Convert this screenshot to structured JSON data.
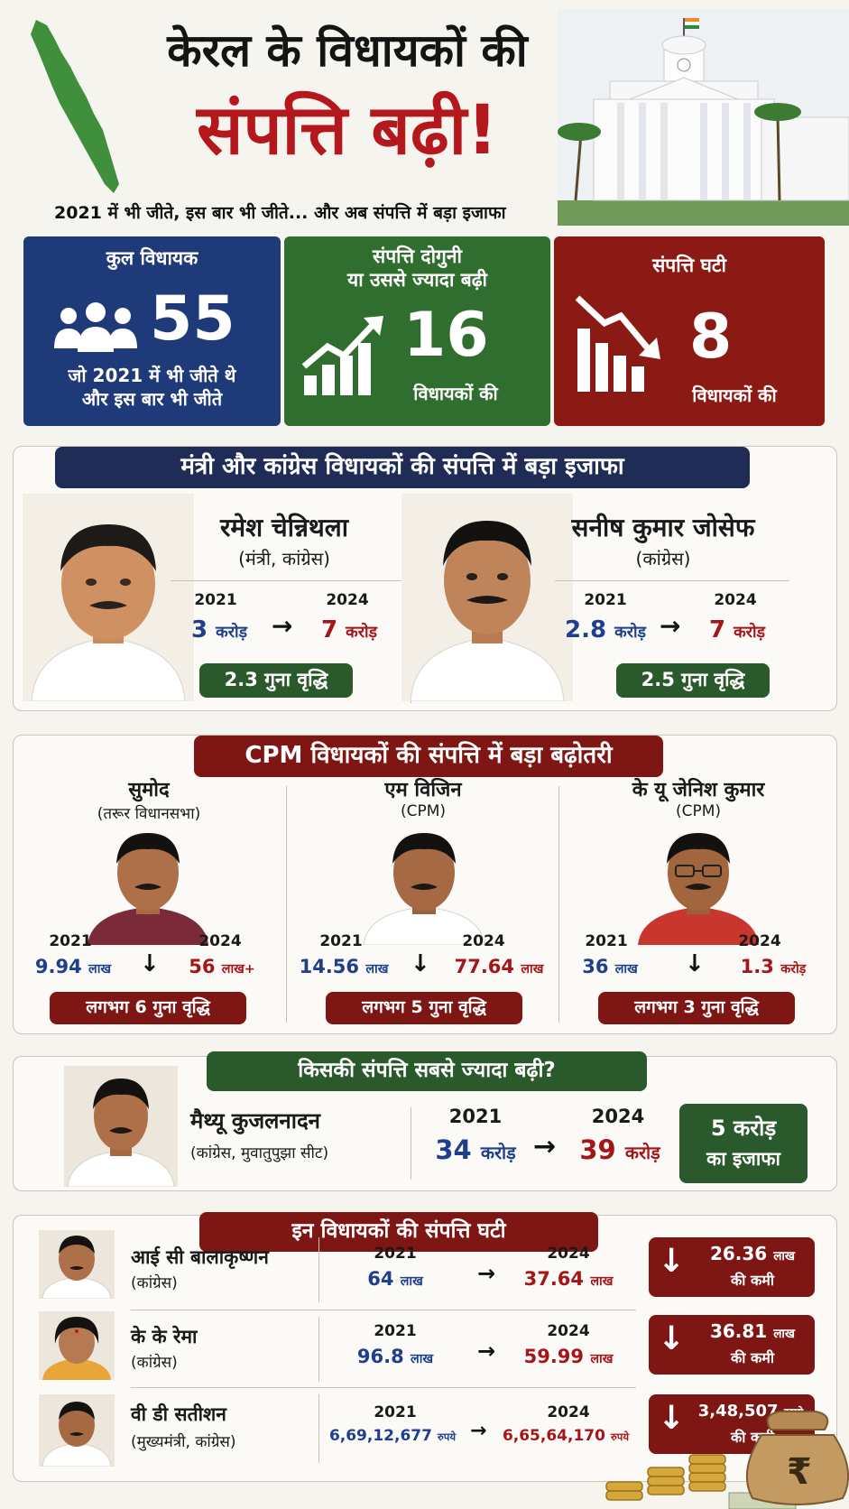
{
  "header": {
    "title_line1": "केरल के विधायकों की",
    "title_line2": "संपत्ति बढ़ी!",
    "subtitle": "2021 में भी जीते, इस बार भी जीते... और अब संपत्ति में बड़ा इजाफा"
  },
  "stats": {
    "total": {
      "heading": "कुल विधायक",
      "value": "55",
      "caption_1": "जो 2021 में भी जीते थे",
      "caption_2": "और इस बार भी जीते"
    },
    "doubled": {
      "heading_1": "संपत्ति दोगुनी",
      "heading_2": "या उससे ज्यादा बढ़ी",
      "value": "16",
      "caption": "विधायकों की"
    },
    "decreased": {
      "heading": "संपत्ति घटी",
      "value": "8",
      "caption": "विधायकों की"
    }
  },
  "section_congress": {
    "heading": "मंत्री और कांग्रेस विधायकों की संपत्ति में बड़ा इजाफा",
    "mlas": [
      {
        "name": "रमेश चेन्निथला",
        "party": "(मंत्री, कांग्रेस)",
        "year_old": "2021",
        "year_new": "2024",
        "old_num": "3",
        "old_unit": "करोड़",
        "new_num": "7",
        "new_unit": "करोड़",
        "growth": "2.3 गुना वृद्धि"
      },
      {
        "name": "सनीष कुमार जोसेफ",
        "party": "(कांग्रेस)",
        "year_old": "2021",
        "year_new": "2024",
        "old_num": "2.8",
        "old_unit": "करोड़",
        "new_num": "7",
        "new_unit": "करोड़",
        "growth": "2.5 गुना वृद्धि"
      }
    ]
  },
  "section_cpm": {
    "heading": "CPM विधायकों की संपत्ति में बड़ा बढ़ोतरी",
    "mlas": [
      {
        "name": "सुमोद",
        "party": "(तरूर विधानसभा)",
        "year_old": "2021",
        "year_new": "2024",
        "old_num": "9.94",
        "old_unit": "लाख",
        "new_num": "56",
        "new_unit": "लाख+",
        "growth": "लगभग 6 गुना वृद्धि"
      },
      {
        "name": "एम विजिन",
        "party": "(CPM)",
        "year_old": "2021",
        "year_new": "2024",
        "old_num": "14.56",
        "old_unit": "लाख",
        "new_num": "77.64",
        "new_unit": "लाख",
        "growth": "लगभग 5 गुना वृद्धि"
      },
      {
        "name": "के यू जेनिश कुमार",
        "party": "(CPM)",
        "year_old": "2021",
        "year_new": "2024",
        "old_num": "36",
        "old_unit": "लाख",
        "new_num": "1.3",
        "new_unit": "करोड़",
        "growth": "लगभग 3 गुना वृद्धि"
      }
    ]
  },
  "section_top": {
    "heading": "किसकी संपत्ति सबसे ज्यादा बढ़ी?",
    "name": "मैथ्यू कुजलनादन",
    "party": "(कांग्रेस, मुवातुपुझा सीट)",
    "year_old": "2021",
    "year_new": "2024",
    "old_num": "34",
    "old_unit": "करोड़",
    "new_num": "39",
    "new_unit": "करोड़",
    "increase_1": "5 करोड़",
    "increase_2": "का इजाफा"
  },
  "section_decline": {
    "heading": "इन विधायकों की संपत्ति घटी",
    "rows": [
      {
        "name": "आई सी बालाकृष्णन",
        "party": "(कांग्रेस)",
        "year_old": "2021",
        "year_new": "2024",
        "old_num": "64",
        "old_unit": "लाख",
        "new_num": "37.64",
        "new_unit": "लाख",
        "drop_num": "26.36",
        "drop_unit": "लाख",
        "drop_caption": "की कमी"
      },
      {
        "name": "के के रेमा",
        "party": "(कांग्रेस)",
        "year_old": "2021",
        "year_new": "2024",
        "old_num": "96.8",
        "old_unit": "लाख",
        "new_num": "59.99",
        "new_unit": "लाख",
        "drop_num": "36.81",
        "drop_unit": "लाख",
        "drop_caption": "की कमी"
      },
      {
        "name": "वी डी सतीशन",
        "party": "(मुख्यमंत्री, कांग्रेस)",
        "year_old": "2021",
        "year_new": "2024",
        "old_num": "6,69,12,677",
        "old_unit": "रुपये",
        "new_num": "6,65,64,170",
        "new_unit": "रुपये",
        "drop_num": "3,48,507",
        "drop_unit": "रुपये",
        "drop_caption": "की कमी"
      }
    ]
  },
  "icons": {
    "arrow_right": "→",
    "arrow_down": "↓",
    "rupee": "₹"
  },
  "colors": {
    "navy": "#1f3a78",
    "green": "#2f6e2f",
    "maroon": "#8c1a14",
    "title_red": "#b4171c",
    "old_value_blue": "#1f3f8c",
    "new_value_red": "#a3161a"
  }
}
